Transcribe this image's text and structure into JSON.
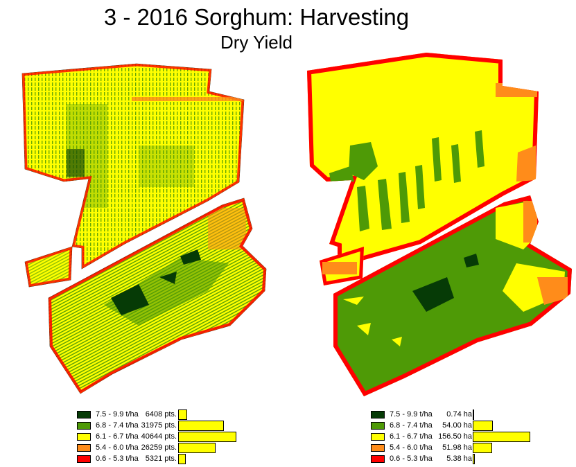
{
  "title": "3 - 2016 Sorghum: Harvesting",
  "subtitle": "Dry Yield",
  "colors": {
    "class_1": "#063b06",
    "class_2": "#4e9a06",
    "class_3": "#ffff00",
    "class_4": "#ff8c1a",
    "class_5": "#ff0000",
    "boundary": "#000000",
    "background": "#ffffff"
  },
  "legend_left": {
    "unit": "pts.",
    "rows": [
      {
        "range": "7.5 - 9.9 t/ha",
        "count": "6408 pts.",
        "value": 6408,
        "color": "#063b06"
      },
      {
        "range": "6.8 - 7.4 t/ha",
        "count": "31975 pts.",
        "value": 31975,
        "color": "#4e9a06"
      },
      {
        "range": "6.1 - 6.7 t/ha",
        "count": "40644 pts.",
        "value": 40644,
        "color": "#ffff00"
      },
      {
        "range": "5.4 - 6.0 t/ha",
        "count": "26259 pts.",
        "value": 26259,
        "color": "#ff8c1a"
      },
      {
        "range": "0.6 - 5.3 t/ha",
        "count": "5321 pts.",
        "value": 5321,
        "color": "#ff0000"
      }
    ]
  },
  "legend_right": {
    "unit": "ha",
    "rows": [
      {
        "range": "7.5 - 9.9 t/ha",
        "count": "0.74 ha",
        "value": 0.74,
        "color": "#063b06"
      },
      {
        "range": "6.8 - 7.4 t/ha",
        "count": "54.00 ha",
        "value": 54.0,
        "color": "#4e9a06"
      },
      {
        "range": "6.1 - 6.7 t/ha",
        "count": "156.50 ha",
        "value": 156.5,
        "color": "#ffff00"
      },
      {
        "range": "5.4 - 6.0 t/ha",
        "count": "51.98 ha",
        "value": 51.98,
        "color": "#ff8c1a"
      },
      {
        "range": "0.6 - 5.3 t/ha",
        "count": "5.38 ha",
        "value": 5.38,
        "color": "#ff0000"
      }
    ]
  }
}
